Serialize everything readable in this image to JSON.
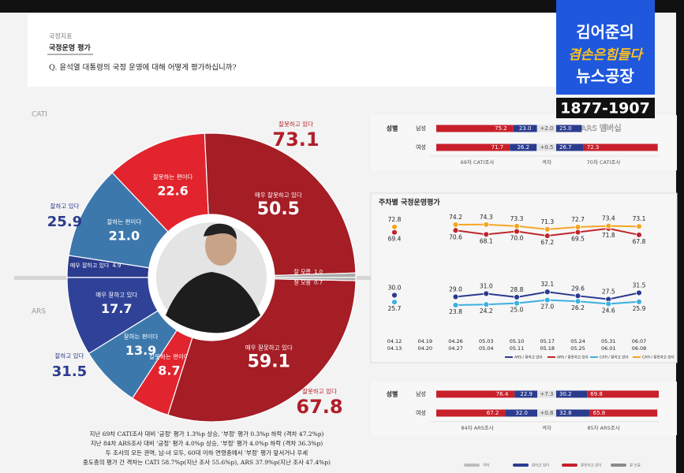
{
  "header": {
    "section": "국정지표",
    "title": "국정운영 평가",
    "question": "Q. 윤석열 대통령의 국정 운영에 대해 어떻게 평가하십니까?"
  },
  "logo": {
    "line1": "김어준의",
    "line2": "겸손은힘들다",
    "line3": "뉴스공장",
    "phone": "1877-1907",
    "membership": "ARS 멤버십"
  },
  "chart_data": [
    {
      "type": "half_donut",
      "half": "top",
      "survey": "CATI",
      "categories": [
        "매우 잘하고 있다",
        "잘하는 편이다",
        "잘못하는 편이다",
        "매우 잘못하고 있다",
        "잘 모름"
      ],
      "values": [
        4.9,
        21.0,
        22.6,
        50.5,
        1.0
      ],
      "value_labels": [
        "4.9",
        "21.0",
        "22.6",
        "50.5",
        "1.0"
      ],
      "colors": [
        "#2b3b8e",
        "#3d78ad",
        "#e1242d",
        "#a51d25",
        "#a9a9a9"
      ],
      "totals": [
        {
          "label": "잘하고 있다",
          "value": 25.9,
          "color": "#2b3b8e"
        },
        {
          "label": "잘못하고 있다",
          "value": 73.1,
          "color": "#b01f29"
        }
      ]
    },
    {
      "type": "half_donut",
      "half": "bottom",
      "survey": "ARS",
      "categories": [
        "매우 잘하고 있다",
        "잘하는 편이다",
        "잘못하는 편이다",
        "매우 잘못하고 있다",
        "잘 모름"
      ],
      "values": [
        17.7,
        13.9,
        8.7,
        59.1,
        0.7
      ],
      "value_labels": [
        "17.7",
        "13.9",
        "8.7",
        "59.1",
        "0.7"
      ],
      "colors": [
        "#2f4297",
        "#3d78ad",
        "#e1242d",
        "#a51d25",
        "#a9a9a9"
      ],
      "totals": [
        {
          "label": "잘하고 있다",
          "value": 31.5,
          "color": "#2b3b8e"
        },
        {
          "label": "잘못하고 있다",
          "value": 67.8,
          "color": "#b01f29"
        }
      ]
    },
    {
      "type": "line",
      "title": "주차별 국정운영평가",
      "categories": [
        "04.12",
        "04.19",
        "04.26",
        "05.03",
        "05.10",
        "05.17",
        "05.24",
        "05.31",
        "06.07"
      ],
      "categories_2": [
        "04.13",
        "04.20",
        "04.27",
        "05.04",
        "05.11",
        "05.18",
        "05.25",
        "06.01",
        "06.08"
      ],
      "ylim": [
        10,
        90
      ],
      "series": [
        {
          "name": "ARS / 잘하고 있다",
          "color": "#2b3990",
          "values": [
            30.0,
            null,
            29.0,
            31.0,
            28.8,
            32.1,
            29.6,
            27.5,
            31.5
          ],
          "value_labels": [
            "30.0",
            null,
            "29.0",
            "31.0",
            "28.8",
            "32.1",
            "29.6",
            "27.5",
            "31.5"
          ]
        },
        {
          "name": "ARS / 잘못하고 있다",
          "color": "#c0262d",
          "values": [
            69.4,
            null,
            70.6,
            68.1,
            70.0,
            67.2,
            69.5,
            71.8,
            67.8
          ],
          "value_labels": [
            "69.4",
            null,
            "70.6",
            "68.1",
            "70.0",
            "67.2",
            "69.5",
            "71.8",
            "67.8"
          ]
        },
        {
          "name": "CATI / 잘하고 있다",
          "color": "#3cb0e0",
          "values": [
            25.7,
            null,
            23.8,
            24.2,
            25.0,
            27.0,
            26.2,
            24.6,
            25.9
          ],
          "value_labels": [
            "25.7",
            null,
            "23.8",
            "24.2",
            "25.0",
            "27.0",
            "26.2",
            "24.6",
            "25.9"
          ]
        },
        {
          "name": "CATI / 잘못하고 있다",
          "color": "#f5a623",
          "values": [
            72.8,
            null,
            74.2,
            74.3,
            73.3,
            71.3,
            72.7,
            73.4,
            73.1
          ],
          "value_labels": [
            "72.8",
            null,
            "74.2",
            "74.3",
            "73.3",
            "71.3",
            "72.7",
            "73.4",
            "73.1"
          ]
        }
      ]
    },
    {
      "type": "gender_gap",
      "title": "성별",
      "categories": [
        "남성",
        "여성"
      ],
      "before_negative": {
        "values": [
          75.2,
          71.7
        ],
        "value_labels": [
          "75.2",
          "71.7"
        ],
        "color": "#c8202b"
      },
      "before_positive": {
        "values": [
          23.0,
          26.2
        ],
        "value_labels": [
          "23.0",
          "26.2"
        ],
        "color": "#2b3b8e"
      },
      "gap_labels": [
        "+2.0",
        "+0.5"
      ],
      "after_positive": {
        "values": [
          25.0,
          26.7
        ],
        "value_labels": [
          "25.0",
          "26.7"
        ],
        "color": "#2b3b8e"
      },
      "after_negative": {
        "values": [
          null,
          72.3
        ],
        "value_labels": [
          null,
          "72.3"
        ],
        "color": "#c8202b"
      },
      "footer": [
        "69차 CATI조사",
        "격차",
        "70차 CATI조사"
      ]
    },
    {
      "type": "gender_gap",
      "title": "성별",
      "categories": [
        "남성",
        "여성"
      ],
      "before_negative": {
        "values": [
          76.4,
          67.2
        ],
        "value_labels": [
          "76.4",
          "67.2"
        ],
        "color": "#c8202b"
      },
      "before_positive": {
        "values": [
          22.9,
          32.0
        ],
        "value_labels": [
          "22.9",
          "32.0"
        ],
        "color": "#2b3b8e"
      },
      "gap_labels": [
        "+7.3",
        "+0.8"
      ],
      "after_positive": {
        "values": [
          30.2,
          32.8
        ],
        "value_labels": [
          "30.2",
          "32.8"
        ],
        "color": "#2b3b8e"
      },
      "after_negative": {
        "values": [
          69.8,
          65.8
        ],
        "value_labels": [
          "69.8",
          "65.8"
        ],
        "color": "#c8202b"
      },
      "footer": [
        "84차 ARS조사",
        "격차",
        "85차 ARS조사"
      ]
    }
  ],
  "notes": [
    "지난 69차 CATI조사 대비 '긍정' 평가 1.3%p 상승, '부정' 평가 0.3%p 하락 (격차 47.2%p)",
    "지난 84차 ARS조사 대비 '긍정' 평가 4.0%p 상승, '부정' 평가 4.0%p 하락 (격차 36.3%p)",
    "두 조사의 모든 권역, 남·녀 모두, 60대 이하 연령층에서 '부정' 평가 앞서거나 우세",
    "중도층의 평가 간 격차는 CATI 58.7%p(지난 조사 55.6%p), ARS 37.9%p(지난 조사 47.4%p)"
  ],
  "legend": [
    {
      "label": "격차",
      "color": "#bdbdbd"
    },
    {
      "label": "잘하고 있다",
      "color": "#2b3b8e"
    },
    {
      "label": "잘못하고 있다",
      "color": "#c8202b"
    },
    {
      "label": "잘 모름",
      "color": "#8a8a8a"
    }
  ]
}
